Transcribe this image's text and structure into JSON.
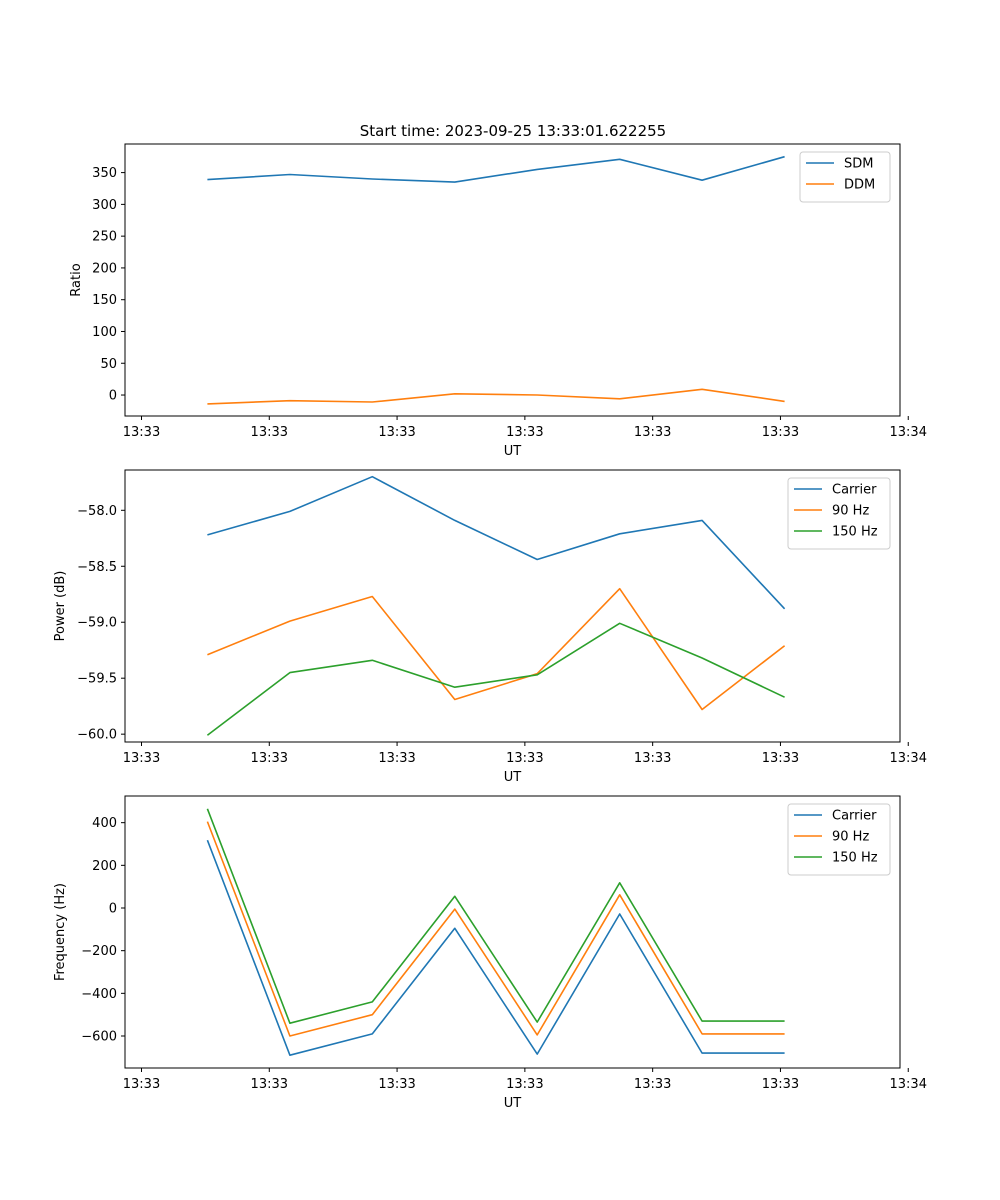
{
  "figure_title": "Start time: 2023-09-25 13:33:01.622255",
  "colors": {
    "blue": "#1f77b4",
    "orange": "#ff7f0e",
    "green": "#2ca02c"
  },
  "chart_data": [
    {
      "type": "line",
      "title": "Start time: 2023-09-25 13:33:01.622255",
      "xlabel": "UT",
      "ylabel": "Ratio",
      "x_tick_labels": [
        "13:33",
        "13:33",
        "13:33",
        "13:33",
        "13:33",
        "13:33",
        "13:34"
      ],
      "x": [
        1,
        2,
        3,
        4,
        5,
        6,
        7,
        8
      ],
      "xlim": [
        0,
        9.4
      ],
      "x_ticks": [
        0.2,
        1.75,
        3.3,
        4.85,
        6.4,
        7.95,
        9.5
      ],
      "ylim": [
        -33,
        395
      ],
      "y_ticks": [
        0,
        50,
        100,
        150,
        200,
        250,
        300,
        350
      ],
      "y_tick_labels": [
        "0",
        "50",
        "100",
        "150",
        "200",
        "250",
        "300",
        "350"
      ],
      "legend": "top-right",
      "series": [
        {
          "name": "SDM",
          "color": "#1f77b4",
          "values": [
            339,
            347,
            340,
            335,
            355,
            371,
            338,
            375
          ]
        },
        {
          "name": "DDM",
          "color": "#ff7f0e",
          "values": [
            -14,
            -9,
            -11,
            2,
            0,
            -6,
            9,
            -10
          ]
        }
      ]
    },
    {
      "type": "line",
      "xlabel": "UT",
      "ylabel": "Power (dB)",
      "x_tick_labels": [
        "13:33",
        "13:33",
        "13:33",
        "13:33",
        "13:33",
        "13:33",
        "13:34"
      ],
      "x": [
        1,
        2,
        3,
        4,
        5,
        6,
        7,
        8
      ],
      "xlim": [
        0,
        9.4
      ],
      "x_ticks": [
        0.2,
        1.75,
        3.3,
        4.85,
        6.4,
        7.95,
        9.5
      ],
      "ylim": [
        -60.07,
        -57.64
      ],
      "y_ticks": [
        -60.0,
        -59.5,
        -59.0,
        -58.5,
        -58.0
      ],
      "y_tick_labels": [
        "−60.0",
        "−59.5",
        "−59.0",
        "−58.5",
        "−58.0"
      ],
      "legend": "top-right",
      "series": [
        {
          "name": "Carrier",
          "color": "#1f77b4",
          "values": [
            -58.22,
            -58.01,
            -57.7,
            -58.09,
            -58.44,
            -58.21,
            -58.09,
            -58.88
          ]
        },
        {
          "name": "90 Hz",
          "color": "#ff7f0e",
          "values": [
            -59.29,
            -58.99,
            -58.77,
            -59.69,
            -59.46,
            -58.7,
            -59.78,
            -59.21
          ]
        },
        {
          "name": "150 Hz",
          "color": "#2ca02c",
          "values": [
            -60.01,
            -59.45,
            -59.34,
            -59.58,
            -59.47,
            -59.01,
            -59.32,
            -59.67
          ]
        }
      ]
    },
    {
      "type": "line",
      "xlabel": "UT",
      "ylabel": "Frequency (Hz)",
      "x_tick_labels": [
        "13:33",
        "13:33",
        "13:33",
        "13:33",
        "13:33",
        "13:33",
        "13:34"
      ],
      "x": [
        1,
        2,
        3,
        4,
        5,
        6,
        7,
        8
      ],
      "xlim": [
        0,
        9.4
      ],
      "x_ticks": [
        0.2,
        1.75,
        3.3,
        4.85,
        6.4,
        7.95,
        9.5
      ],
      "ylim": [
        -750,
        525
      ],
      "y_ticks": [
        -600,
        -400,
        -200,
        0,
        200,
        400
      ],
      "y_tick_labels": [
        "−600",
        "−400",
        "−200",
        "0",
        "200",
        "400"
      ],
      "legend": "top-right",
      "series": [
        {
          "name": "Carrier",
          "color": "#1f77b4",
          "values": [
            318,
            -690,
            -590,
            -95,
            -685,
            -28,
            -680,
            -680
          ]
        },
        {
          "name": "90 Hz",
          "color": "#ff7f0e",
          "values": [
            405,
            -600,
            -500,
            -5,
            -595,
            62,
            -590,
            -590
          ]
        },
        {
          "name": "150 Hz",
          "color": "#2ca02c",
          "values": [
            465,
            -540,
            -440,
            55,
            -535,
            118,
            -530,
            -530
          ]
        }
      ]
    }
  ]
}
